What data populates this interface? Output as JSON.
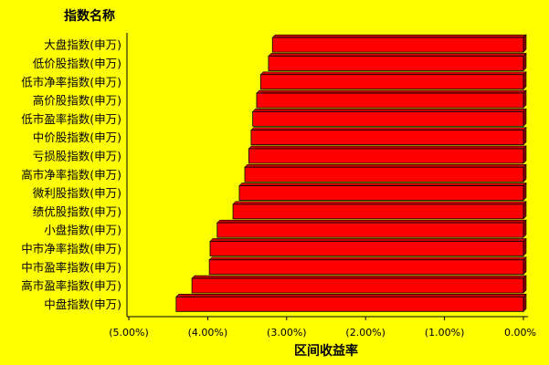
{
  "chart_data": {
    "type": "bar",
    "orientation": "horizontal",
    "ytitle": "指数名称",
    "xtitle": "区间收益率",
    "categories": [
      "大盘指数(申万)",
      "低价股指数(申万)",
      "低市净率指数(申万)",
      "高价股指数(申万)",
      "低市盈率指数(申万)",
      "中价股指数(申万)",
      "亏损股指数(申万)",
      "高市净率指数(申万)",
      "微利股指数(申万)",
      "绩优股指数(申万)",
      "小盘指数(申万)",
      "中市净率指数(申万)",
      "中市盈率指数(申万)",
      "高市盈率指数(申万)",
      "中盘指数(申万)"
    ],
    "values": [
      -3.18,
      -3.23,
      -3.33,
      -3.38,
      -3.43,
      -3.45,
      -3.48,
      -3.53,
      -3.6,
      -3.68,
      -3.88,
      -3.97,
      -3.98,
      -4.2,
      -4.4
    ],
    "unit": "%",
    "xlim": [
      -5.0,
      0.0
    ],
    "xticks": [
      -5,
      -4,
      -3,
      -2,
      -1,
      0
    ],
    "xtick_labels": [
      "(5.00%)",
      "(4.00%)",
      "(3.00%)",
      "(2.00%)",
      "(1.00%)",
      "0.00%"
    ],
    "bar_color": "#ff0000",
    "background": "#ffff00",
    "grid": false,
    "legend": "none"
  }
}
